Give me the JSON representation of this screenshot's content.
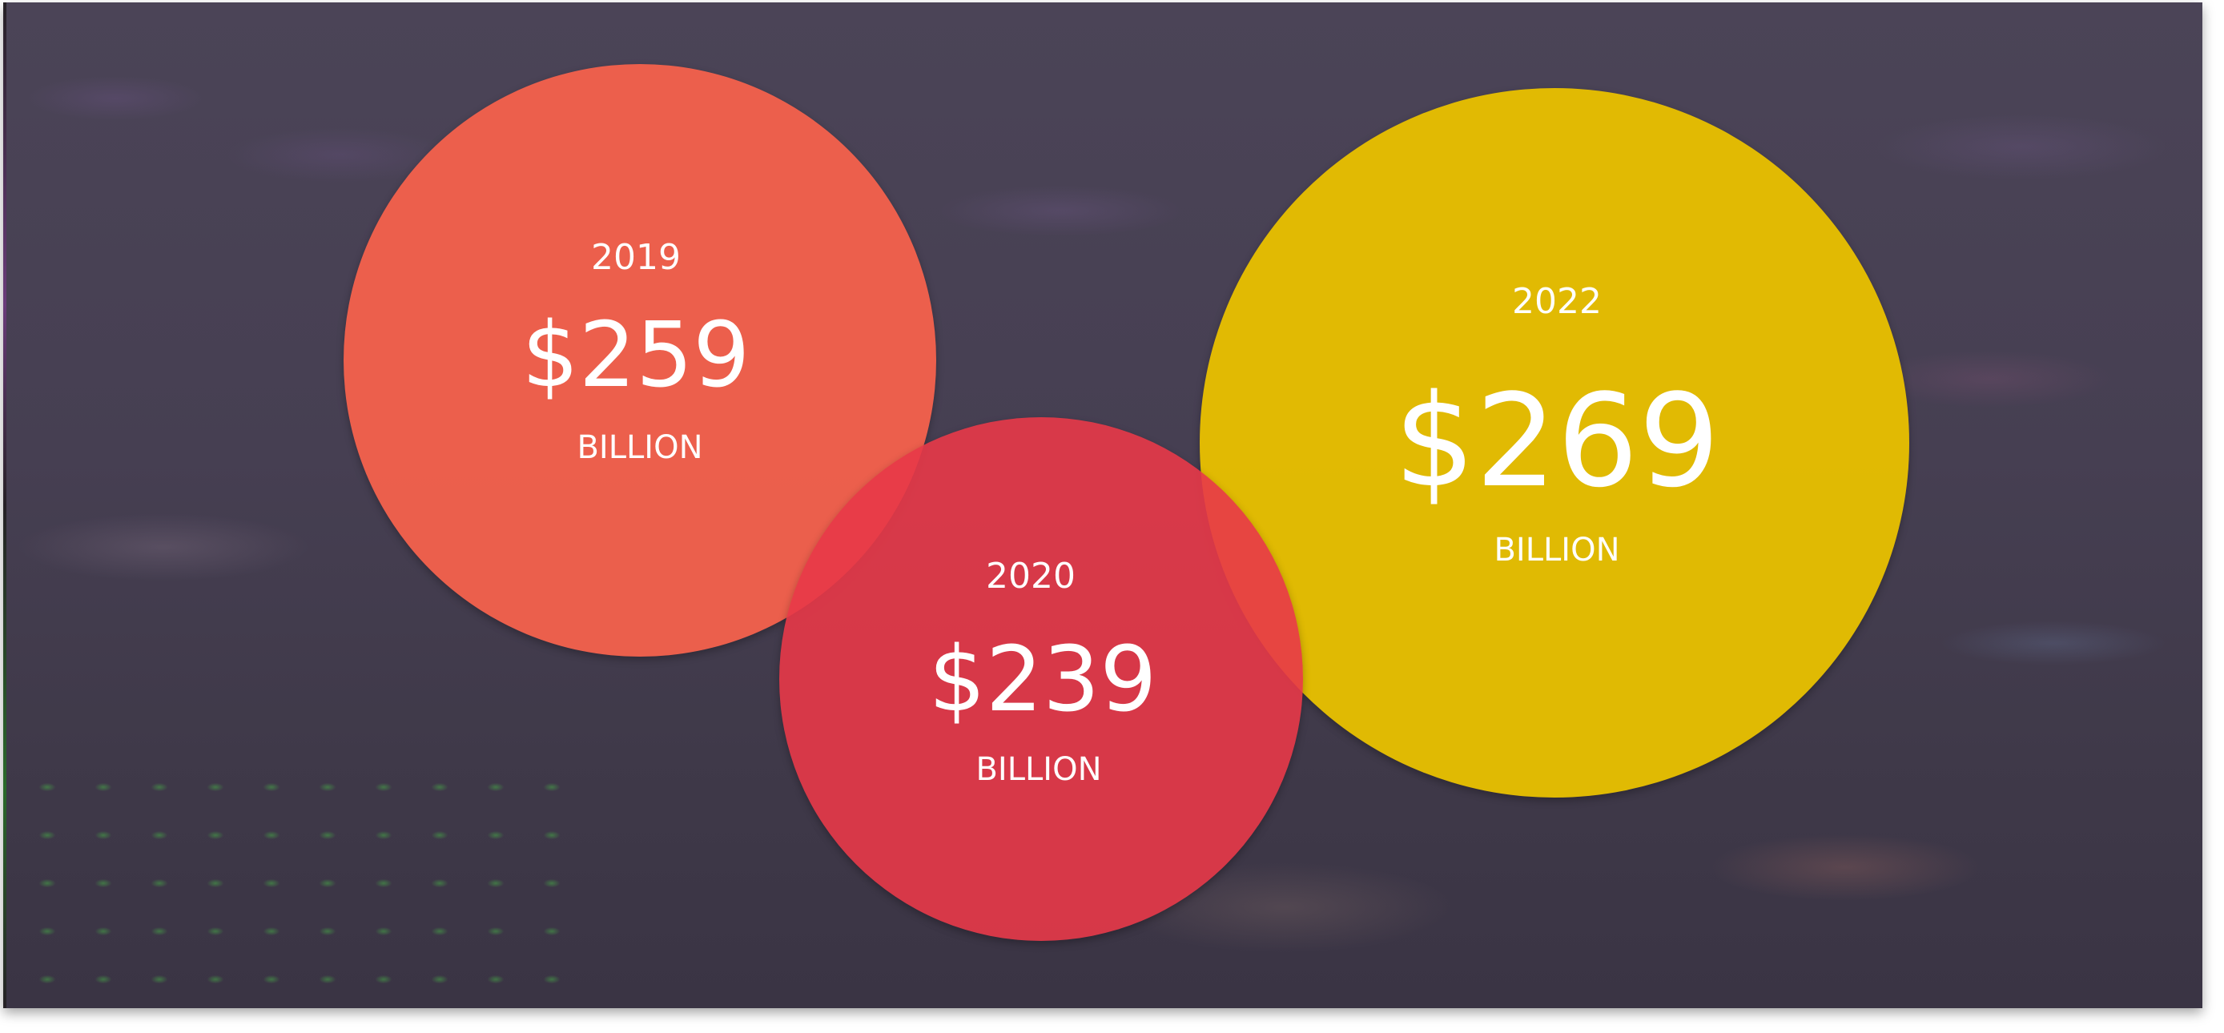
{
  "bubbles": {
    "b2019": {
      "year": "2019",
      "value": "$259",
      "unit": "BILLION",
      "color": "#F2614C"
    },
    "b2020": {
      "year": "2020",
      "value": "$239",
      "unit": "BILLION",
      "color": "#E83848"
    },
    "b2022": {
      "year": "2022",
      "value": "$269",
      "unit": "BILLION",
      "color": "#E7C000"
    }
  }
}
